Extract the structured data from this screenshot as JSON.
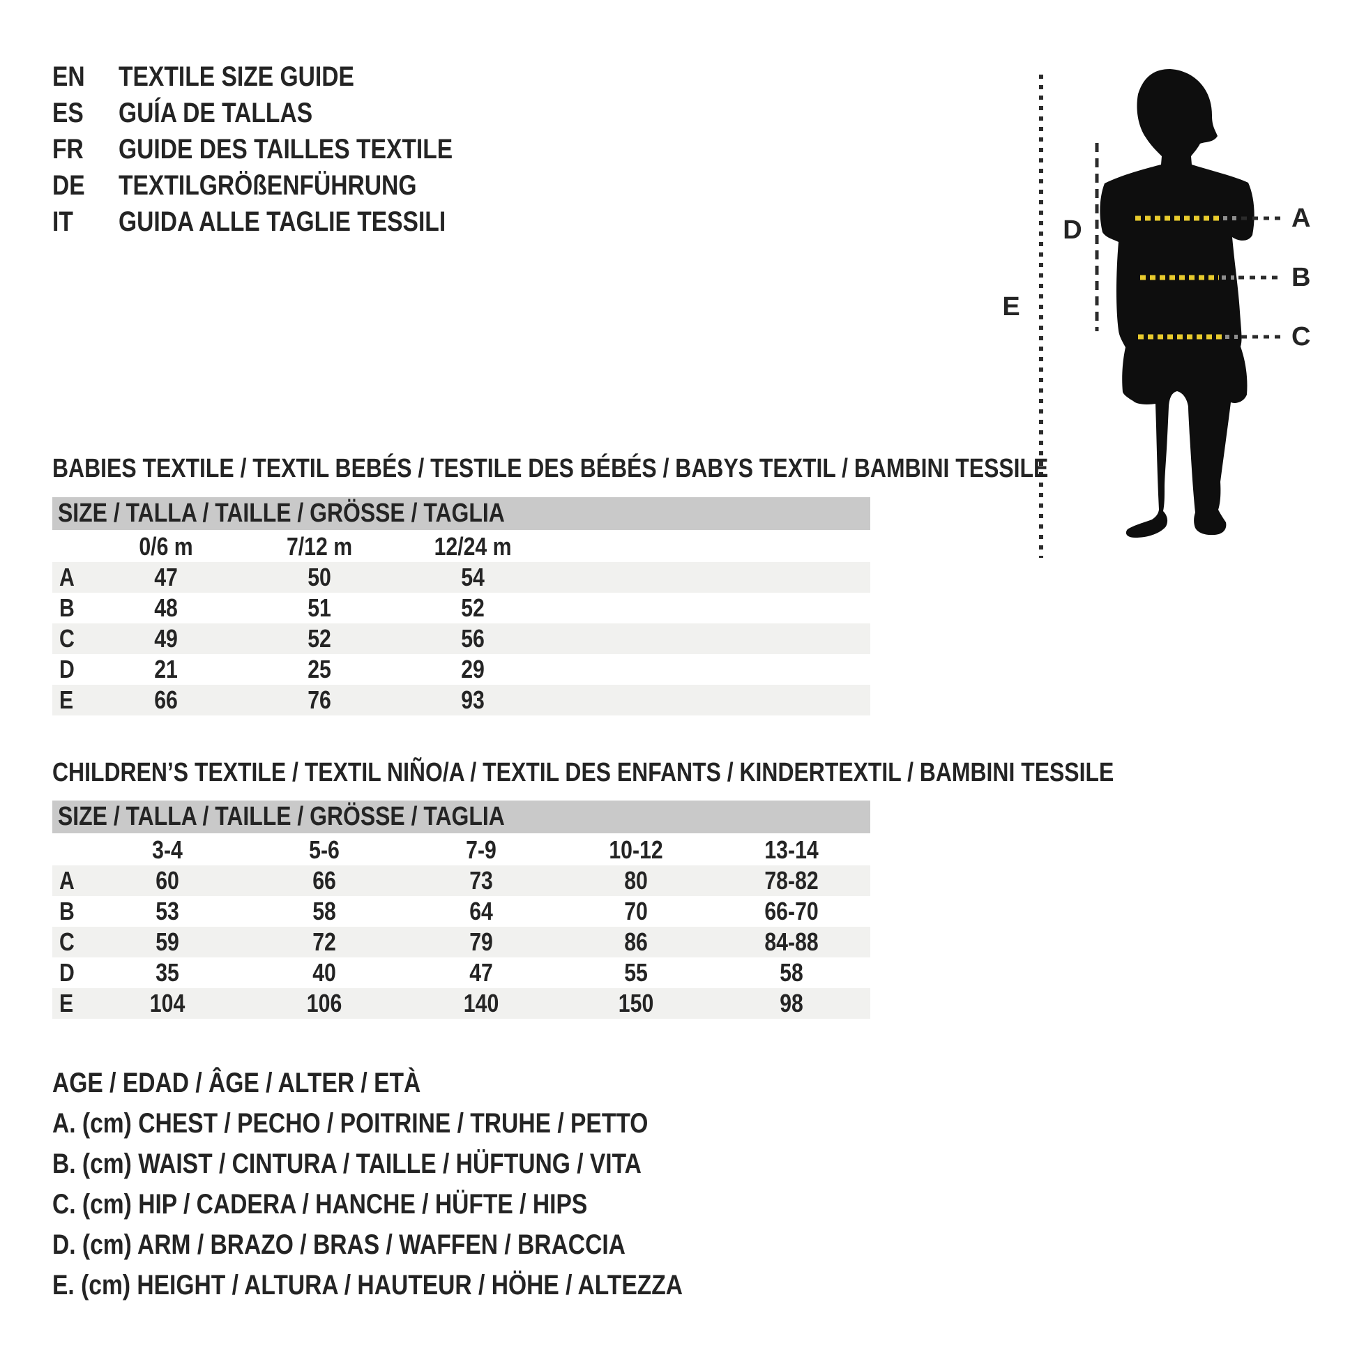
{
  "theme": {
    "text": "#242424",
    "header_bar": "#c9c9c9",
    "row_band": "#f1f1ef",
    "measure_yellow": "#e8cb2d",
    "silhouette": "#0e0e0e",
    "leader_dark": "#2b2b2b",
    "leader_gray": "#8e8e8e"
  },
  "languages": {
    "items": [
      {
        "code": "EN",
        "label": "TEXTILE SIZE GUIDE"
      },
      {
        "code": "ES",
        "label": "GUÍA DE TALLAS"
      },
      {
        "code": "FR",
        "label": "GUIDE DES TAILLES TEXTILE"
      },
      {
        "code": "DE",
        "label": "TEXTILGRÖßENFÜHRUNG"
      },
      {
        "code": "IT",
        "label": "GUIDA ALLE TAGLIE TESSILI"
      }
    ]
  },
  "diagram": {
    "labels": {
      "a": "A",
      "b": "B",
      "c": "C",
      "d": "D",
      "e": "E"
    }
  },
  "babies": {
    "title": "BABIES TEXTILE / TEXTIL BEBÉS / TESTILE DES BÉBÉS / BABYS TEXTIL / BAMBINI TESSILE",
    "size_header": "SIZE / TALLA / TAILLE / GRÖSSE / TAGLIA",
    "columns": [
      "0/6 m",
      "7/12 m",
      "12/24 m"
    ],
    "rows": [
      {
        "label": "A",
        "values": [
          "47",
          "50",
          "54"
        ]
      },
      {
        "label": "B",
        "values": [
          "48",
          "51",
          "52"
        ]
      },
      {
        "label": "C",
        "values": [
          "49",
          "52",
          "56"
        ]
      },
      {
        "label": "D",
        "values": [
          "21",
          "25",
          "29"
        ]
      },
      {
        "label": "E",
        "values": [
          "66",
          "76",
          "93"
        ]
      }
    ]
  },
  "children": {
    "title": "CHILDREN’S TEXTILE / TEXTIL NIÑO/A / TEXTIL DES ENFANTS / KINDERTEXTIL / BAMBINI TESSILE",
    "size_header": "SIZE / TALLA / TAILLE / GRÖSSE / TAGLIA",
    "columns": [
      "3-4",
      "5-6",
      "7-9",
      "10-12",
      "13-14"
    ],
    "rows": [
      {
        "label": "A",
        "values": [
          "60",
          "66",
          "73",
          "80",
          "78-82"
        ]
      },
      {
        "label": "B",
        "values": [
          "53",
          "58",
          "64",
          "70",
          "66-70"
        ]
      },
      {
        "label": "C",
        "values": [
          "59",
          "72",
          "79",
          "86",
          "84-88"
        ]
      },
      {
        "label": "D",
        "values": [
          "35",
          "40",
          "47",
          "55",
          "58"
        ]
      },
      {
        "label": "E",
        "values": [
          "104",
          "106",
          "140",
          "150",
          "98"
        ]
      }
    ]
  },
  "legend": {
    "items": [
      "AGE / EDAD / ÂGE / ALTER / ETÀ",
      "A. (cm) CHEST / PECHO / POITRINE / TRUHE / PETTO",
      "B. (cm) WAIST / CINTURA / TAILLE / HÜFTUNG / VITA",
      "C. (cm) HIP / CADERA / HANCHE / HÜFTE / HIPS",
      "D. (cm) ARM / BRAZO / BRAS / WAFFEN / BRACCIA",
      "E. (cm) HEIGHT / ALTURA / HAUTEUR / HÖHE / ALTEZZA"
    ]
  }
}
